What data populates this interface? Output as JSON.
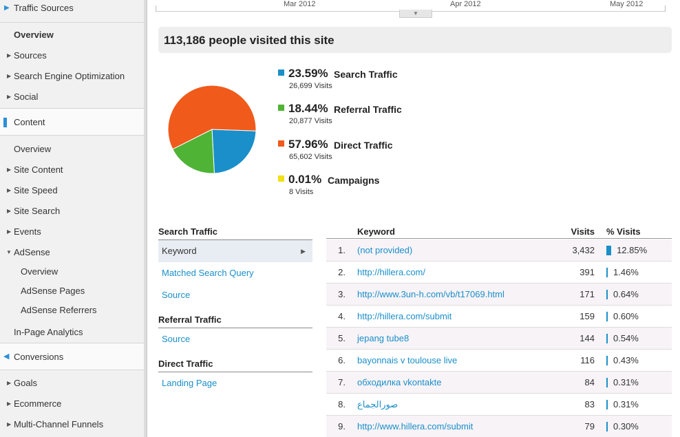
{
  "sidebar": {
    "traffic_sources": "Traffic Sources",
    "overview": "Overview",
    "sources": "Sources",
    "seo": "Search Engine Optimization",
    "social": "Social",
    "content": "Content",
    "content_overview": "Overview",
    "site_content": "Site Content",
    "site_speed": "Site Speed",
    "site_search": "Site Search",
    "events": "Events",
    "adsense": "AdSense",
    "adsense_overview": "Overview",
    "adsense_pages": "AdSense Pages",
    "adsense_referrers": "AdSense Referrers",
    "in_page_analytics": "In-Page Analytics",
    "conversions": "Conversions",
    "goals": "Goals",
    "ecommerce": "Ecommerce",
    "multi_channel": "Multi-Channel Funnels"
  },
  "timeline": {
    "labels": [
      "Mar 2012",
      "Apr 2012",
      "May 2012"
    ]
  },
  "headline": "113,186 people visited this site",
  "chart_data": {
    "type": "pie",
    "slices": [
      {
        "name": "Search Traffic",
        "percent": 23.59,
        "visits": 26699,
        "color": "#1a8fc9"
      },
      {
        "name": "Referral Traffic",
        "percent": 18.44,
        "visits": 20877,
        "color": "#4fb336"
      },
      {
        "name": "Direct Traffic",
        "percent": 57.96,
        "visits": 65602,
        "color": "#f05a1a"
      },
      {
        "name": "Campaigns",
        "percent": 0.01,
        "visits": 8,
        "color": "#f2e018"
      }
    ]
  },
  "legend": [
    {
      "pct": "23.59%",
      "name": "Search Traffic",
      "visits": "26,699 Visits",
      "color": "#1a8fc9"
    },
    {
      "pct": "18.44%",
      "name": "Referral Traffic",
      "visits": "20,877 Visits",
      "color": "#4fb336"
    },
    {
      "pct": "57.96%",
      "name": "Direct Traffic",
      "visits": "65,602 Visits",
      "color": "#f05a1a"
    },
    {
      "pct": "0.01%",
      "name": "Campaigns",
      "visits": "8 Visits",
      "color": "#f2e018"
    }
  ],
  "subnav": {
    "search_head": "Search Traffic",
    "keyword": "Keyword",
    "matched_query": "Matched Search Query",
    "search_source": "Source",
    "referral_head": "Referral Traffic",
    "referral_source": "Source",
    "direct_head": "Direct Traffic",
    "landing_page": "Landing Page"
  },
  "table": {
    "headers": {
      "keyword": "Keyword",
      "visits": "Visits",
      "pct_visits": "% Visits"
    },
    "rows": [
      {
        "num": "1.",
        "keyword": "(not provided)",
        "visits": "3,432",
        "pct": "12.85%",
        "share": 12.85
      },
      {
        "num": "2.",
        "keyword": "http://hillera.com/",
        "visits": "391",
        "pct": "1.46%",
        "share": 1.46
      },
      {
        "num": "3.",
        "keyword": "http://www.3un-h.com/vb/t17069.html",
        "visits": "171",
        "pct": "0.64%",
        "share": 0.64
      },
      {
        "num": "4.",
        "keyword": "http://hillera.com/submit",
        "visits": "159",
        "pct": "0.60%",
        "share": 0.6
      },
      {
        "num": "5.",
        "keyword": "jepang tube8",
        "visits": "144",
        "pct": "0.54%",
        "share": 0.54
      },
      {
        "num": "6.",
        "keyword": "bayonnais v toulouse live",
        "visits": "116",
        "pct": "0.43%",
        "share": 0.43
      },
      {
        "num": "7.",
        "keyword": "обходилка vkontakte",
        "visits": "84",
        "pct": "0.31%",
        "share": 0.31
      },
      {
        "num": "8.",
        "keyword": "صورالجماع",
        "visits": "83",
        "pct": "0.31%",
        "share": 0.31
      },
      {
        "num": "9.",
        "keyword": "http://www.hillera.com/submit",
        "visits": "79",
        "pct": "0.30%",
        "share": 0.3
      }
    ]
  }
}
